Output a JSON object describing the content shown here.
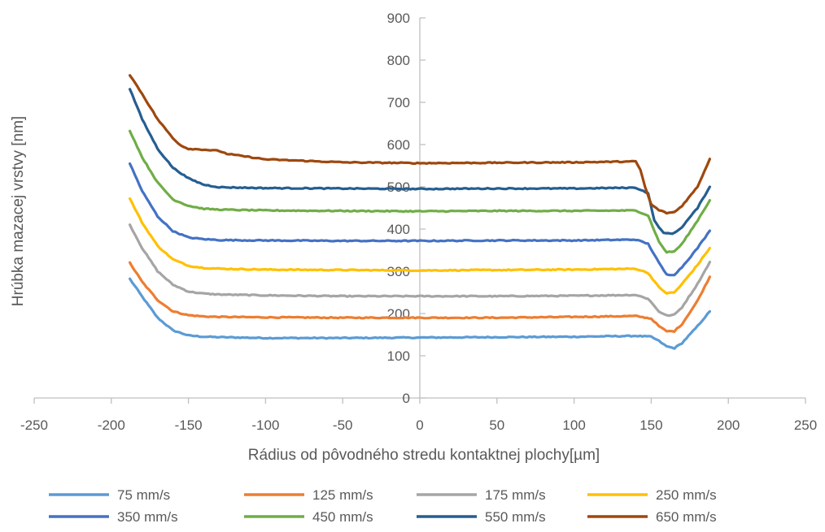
{
  "chart_data": {
    "type": "line",
    "title": "",
    "xlabel": "Rádius od pôvodného stredu kontaktnej plochy[µm]",
    "ylabel": "Hrúbka mazacej vrstvy [nm]",
    "xlim": [
      -250,
      250
    ],
    "ylim": [
      0,
      900
    ],
    "x_ticks": [
      -250,
      -200,
      -150,
      -100,
      -50,
      0,
      50,
      100,
      150,
      200,
      250
    ],
    "y_ticks": [
      0,
      100,
      200,
      300,
      400,
      500,
      600,
      700,
      800,
      900
    ],
    "grid": false,
    "legend_position": "bottom",
    "series": [
      {
        "name": "75 mm/s",
        "color": "#5B9BD5",
        "x": [
          -188,
          -180,
          -170,
          -160,
          -150,
          -140,
          -130,
          -100,
          -50,
          0,
          50,
          100,
          140,
          150,
          155,
          160,
          165,
          170,
          180,
          188
        ],
        "y": [
          282,
          240,
          190,
          160,
          148,
          145,
          144,
          142,
          142,
          143,
          144,
          145,
          147,
          145,
          135,
          122,
          118,
          130,
          170,
          205
        ]
      },
      {
        "name": "125 mm/s",
        "color": "#ED7D31",
        "x": [
          -188,
          -180,
          -170,
          -160,
          -150,
          -140,
          -130,
          -100,
          -50,
          0,
          50,
          100,
          140,
          150,
          155,
          160,
          165,
          170,
          180,
          188
        ],
        "y": [
          320,
          275,
          232,
          205,
          196,
          193,
          192,
          191,
          190,
          190,
          190,
          192,
          194,
          188,
          170,
          158,
          158,
          175,
          230,
          287
        ]
      },
      {
        "name": "175 mm/s",
        "color": "#A5A5A5",
        "x": [
          -188,
          -180,
          -170,
          -160,
          -150,
          -140,
          -130,
          -100,
          -50,
          0,
          50,
          100,
          140,
          148,
          155,
          160,
          165,
          170,
          180,
          188
        ],
        "y": [
          410,
          355,
          300,
          268,
          252,
          247,
          245,
          243,
          241,
          241,
          241,
          242,
          244,
          235,
          205,
          195,
          197,
          215,
          270,
          322
        ]
      },
      {
        "name": "250 mm/s",
        "color": "#FFC000",
        "x": [
          -188,
          -180,
          -170,
          -160,
          -150,
          -140,
          -130,
          -100,
          -50,
          0,
          50,
          100,
          140,
          148,
          155,
          160,
          165,
          170,
          180,
          188
        ],
        "y": [
          472,
          415,
          360,
          328,
          313,
          308,
          306,
          304,
          303,
          302,
          303,
          304,
          306,
          296,
          262,
          248,
          250,
          270,
          315,
          355
        ]
      },
      {
        "name": "350 mm/s",
        "color": "#4472C4",
        "x": [
          -188,
          -180,
          -170,
          -160,
          -150,
          -140,
          -130,
          -100,
          -50,
          0,
          50,
          100,
          140,
          148,
          155,
          160,
          165,
          170,
          180,
          188
        ],
        "y": [
          555,
          490,
          430,
          395,
          380,
          376,
          374,
          373,
          372,
          372,
          373,
          373,
          375,
          365,
          320,
          292,
          292,
          310,
          355,
          396
        ]
      },
      {
        "name": "450 mm/s",
        "color": "#70AD47",
        "x": [
          -188,
          -180,
          -170,
          -160,
          -150,
          -140,
          -130,
          -100,
          -50,
          0,
          50,
          100,
          140,
          148,
          155,
          160,
          165,
          170,
          180,
          188
        ],
        "y": [
          633,
          570,
          510,
          470,
          455,
          448,
          446,
          444,
          443,
          442,
          443,
          443,
          444,
          432,
          370,
          345,
          347,
          365,
          420,
          468
        ]
      },
      {
        "name": "550 mm/s",
        "color": "#255E91",
        "x": [
          -188,
          -180,
          -170,
          -160,
          -150,
          -140,
          -130,
          -100,
          -50,
          0,
          50,
          100,
          140,
          148,
          152,
          158,
          165,
          170,
          180,
          188
        ],
        "y": [
          732,
          660,
          590,
          545,
          520,
          505,
          499,
          497,
          496,
          495,
          496,
          496,
          498,
          485,
          420,
          390,
          390,
          405,
          450,
          500
        ]
      },
      {
        "name": "650 mm/s",
        "color": "#9E480E",
        "x": [
          -188,
          -180,
          -170,
          -160,
          -155,
          -150,
          -140,
          -130,
          -125,
          -100,
          -50,
          0,
          50,
          100,
          140,
          143,
          146,
          150,
          155,
          160,
          165,
          170,
          180,
          188
        ],
        "y": [
          765,
          720,
          660,
          615,
          598,
          590,
          588,
          585,
          578,
          565,
          558,
          556,
          557,
          558,
          560,
          540,
          500,
          458,
          445,
          438,
          440,
          455,
          500,
          566
        ]
      }
    ]
  }
}
